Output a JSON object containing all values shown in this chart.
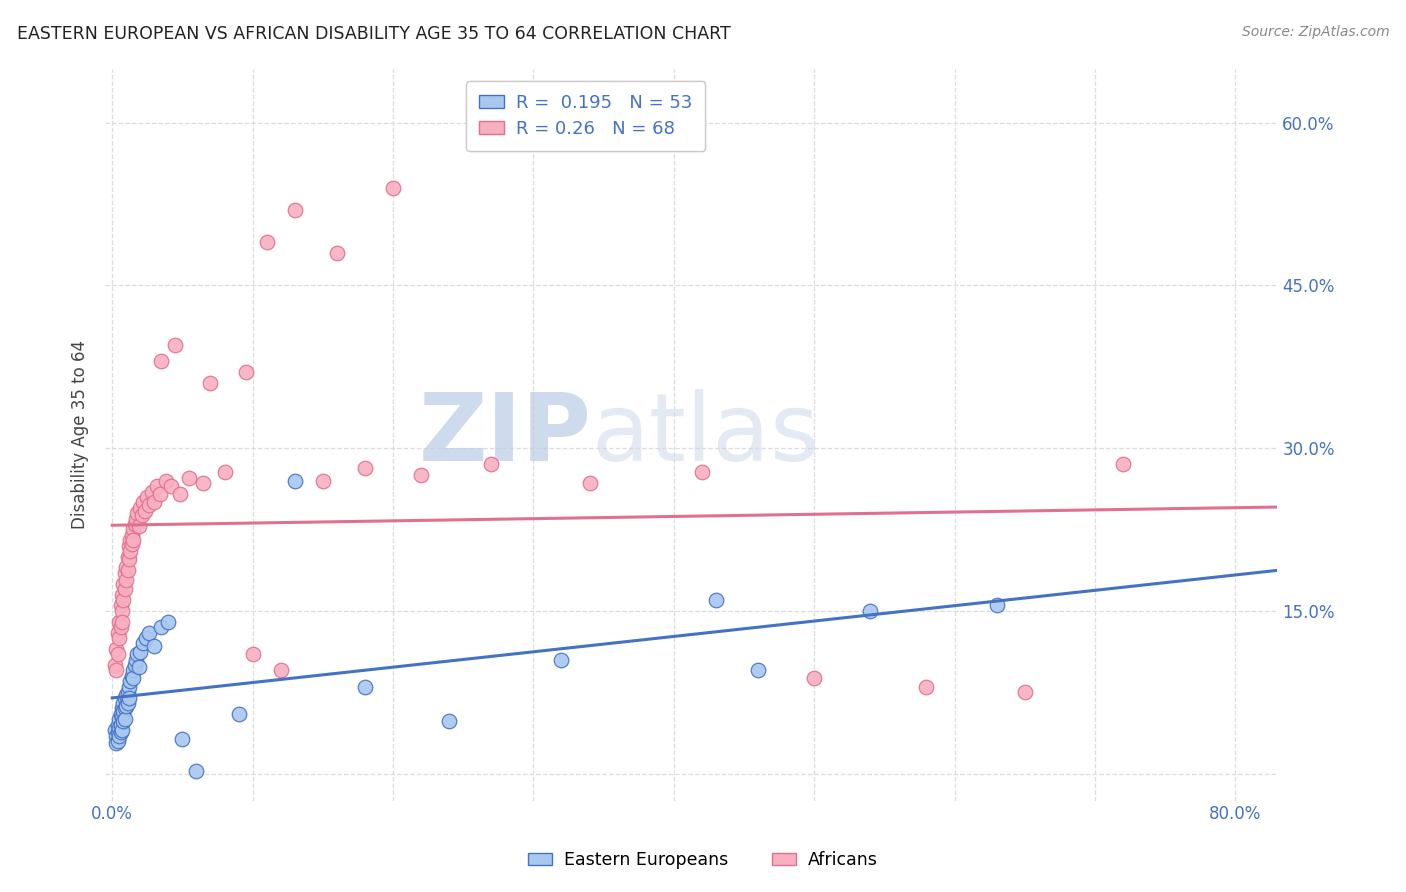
{
  "title": "EASTERN EUROPEAN VS AFRICAN DISABILITY AGE 35 TO 64 CORRELATION CHART",
  "source": "Source: ZipAtlas.com",
  "ylabel": "Disability Age 35 to 64",
  "xlim": [
    -0.005,
    0.83
  ],
  "ylim": [
    -0.025,
    0.65
  ],
  "ee_R": 0.195,
  "ee_N": 53,
  "af_R": 0.26,
  "af_N": 68,
  "ee_color": "#a8c8f0",
  "af_color": "#f8b0c0",
  "ee_edge_color": "#4472c4",
  "af_edge_color": "#e07090",
  "ee_line_color": "#4472c4",
  "af_line_color": "#e07090",
  "legend_label_ee": "Eastern Europeans",
  "legend_label_af": "Africans",
  "watermark_zip": "ZIP",
  "watermark_atlas": "atlas",
  "background_color": "#ffffff",
  "grid_color": "#dddddd",
  "title_color": "#222222",
  "source_color": "#888888",
  "tick_label_color": "#4472c4",
  "ee_scatter_x": [
    0.002,
    0.003,
    0.003,
    0.004,
    0.004,
    0.004,
    0.005,
    0.005,
    0.005,
    0.006,
    0.006,
    0.006,
    0.007,
    0.007,
    0.007,
    0.008,
    0.008,
    0.008,
    0.009,
    0.009,
    0.009,
    0.01,
    0.01,
    0.011,
    0.011,
    0.012,
    0.012,
    0.013,
    0.014,
    0.015,
    0.015,
    0.016,
    0.017,
    0.018,
    0.019,
    0.02,
    0.022,
    0.024,
    0.026,
    0.03,
    0.035,
    0.04,
    0.05,
    0.06,
    0.09,
    0.13,
    0.18,
    0.24,
    0.32,
    0.43,
    0.46,
    0.54,
    0.63
  ],
  "ee_scatter_y": [
    0.04,
    0.035,
    0.028,
    0.045,
    0.038,
    0.03,
    0.05,
    0.042,
    0.035,
    0.055,
    0.045,
    0.038,
    0.06,
    0.052,
    0.04,
    0.065,
    0.058,
    0.048,
    0.07,
    0.06,
    0.05,
    0.072,
    0.062,
    0.075,
    0.065,
    0.08,
    0.07,
    0.085,
    0.09,
    0.095,
    0.088,
    0.1,
    0.105,
    0.11,
    0.098,
    0.112,
    0.12,
    0.125,
    0.13,
    0.118,
    0.135,
    0.14,
    0.032,
    0.002,
    0.055,
    0.27,
    0.08,
    0.048,
    0.105,
    0.16,
    0.095,
    0.15,
    0.155
  ],
  "af_scatter_x": [
    0.002,
    0.003,
    0.003,
    0.004,
    0.004,
    0.005,
    0.005,
    0.006,
    0.006,
    0.007,
    0.007,
    0.007,
    0.008,
    0.008,
    0.009,
    0.009,
    0.01,
    0.01,
    0.011,
    0.011,
    0.012,
    0.012,
    0.013,
    0.013,
    0.014,
    0.014,
    0.015,
    0.015,
    0.016,
    0.017,
    0.018,
    0.019,
    0.02,
    0.021,
    0.022,
    0.023,
    0.025,
    0.026,
    0.028,
    0.03,
    0.032,
    0.034,
    0.038,
    0.042,
    0.048,
    0.055,
    0.065,
    0.08,
    0.1,
    0.12,
    0.15,
    0.18,
    0.22,
    0.27,
    0.34,
    0.42,
    0.5,
    0.58,
    0.65,
    0.72,
    0.035,
    0.045,
    0.07,
    0.095,
    0.11,
    0.13,
    0.16,
    0.2
  ],
  "af_scatter_y": [
    0.1,
    0.115,
    0.095,
    0.13,
    0.11,
    0.14,
    0.125,
    0.155,
    0.135,
    0.165,
    0.15,
    0.14,
    0.175,
    0.16,
    0.185,
    0.17,
    0.19,
    0.178,
    0.2,
    0.188,
    0.21,
    0.198,
    0.215,
    0.205,
    0.22,
    0.212,
    0.225,
    0.215,
    0.23,
    0.235,
    0.24,
    0.228,
    0.245,
    0.238,
    0.25,
    0.242,
    0.255,
    0.248,
    0.26,
    0.25,
    0.265,
    0.258,
    0.27,
    0.265,
    0.258,
    0.272,
    0.268,
    0.278,
    0.11,
    0.095,
    0.27,
    0.282,
    0.275,
    0.285,
    0.268,
    0.278,
    0.088,
    0.08,
    0.075,
    0.285,
    0.38,
    0.395,
    0.36,
    0.37,
    0.49,
    0.52,
    0.48,
    0.54
  ]
}
